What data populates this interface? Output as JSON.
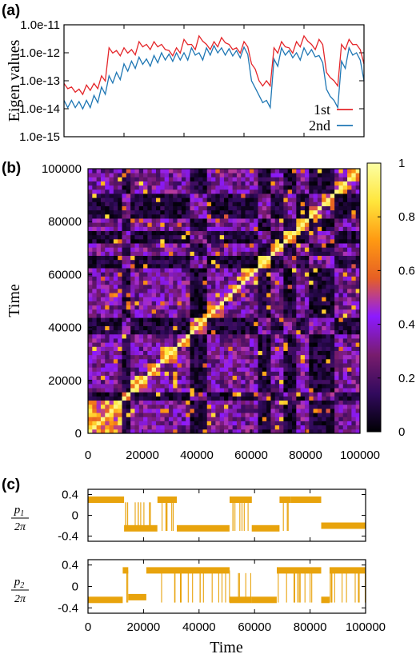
{
  "panels": {
    "a": "(a)",
    "b": "(b)",
    "c": "(c)"
  },
  "chart_data": [
    {
      "panel": "(a)",
      "type": "line",
      "ylabel": "Eigen values",
      "yscale": "log",
      "ylim": [
        1e-15,
        1e-11
      ],
      "xlim": [
        0,
        100000
      ],
      "yticks": [
        "1.0e-11",
        "1.0e-12",
        "1.0e-13",
        "1.0e-14",
        "1.0e-15"
      ],
      "legend_position": "bottom-right",
      "x": [
        0,
        2500,
        5000,
        7500,
        10000,
        12500,
        15000,
        17500,
        20000,
        22500,
        25000,
        27500,
        30000,
        32500,
        35000,
        37500,
        40000,
        42500,
        45000,
        47500,
        50000,
        52500,
        55000,
        57500,
        60000,
        62500,
        65000,
        67500,
        70000,
        72500,
        75000,
        77500,
        80000,
        82500,
        85000,
        87500,
        90000,
        92500,
        95000,
        97500,
        100000
      ],
      "series": [
        {
          "name": "1st",
          "color": "#e4262a",
          "values": [
            8e-14,
            6e-14,
            5e-14,
            7e-14,
            8e-14,
            1.5e-13,
            1.5e-12,
            1.2e-12,
            1.5e-12,
            1.3e-12,
            2.5e-12,
            2e-12,
            2.5e-12,
            2e-12,
            1.2e-12,
            1.5e-12,
            3e-12,
            2e-12,
            4e-12,
            2e-12,
            2.5e-12,
            3.5e-12,
            2e-12,
            1.5e-12,
            2.5e-12,
            4e-13,
            1e-13,
            1e-13,
            1.5e-12,
            2.5e-12,
            1.5e-12,
            2.5e-12,
            4e-12,
            2e-12,
            3e-12,
            2e-13,
            1e-13,
            2e-12,
            3e-12,
            2e-12,
            4e-13
          ]
        },
        {
          "name": "2nd",
          "color": "#1f77b4",
          "values": [
            2e-14,
            2e-14,
            1.8e-14,
            2e-14,
            3e-14,
            6e-14,
            1.5e-13,
            2e-13,
            4e-13,
            5e-13,
            7e-13,
            6e-13,
            8e-13,
            1e-12,
            9e-13,
            1e-12,
            1e-12,
            1.5e-12,
            1e-12,
            1.5e-12,
            1.8e-12,
            1.5e-12,
            1.4e-12,
            1.2e-12,
            1.6e-12,
            1e-13,
            3e-14,
            2e-14,
            6e-13,
            1.5e-12,
            1.2e-12,
            1e-12,
            1.5e-12,
            1.3e-12,
            8e-13,
            5e-14,
            2e-14,
            5e-13,
            1.5e-12,
            1e-12,
            1e-13
          ]
        }
      ]
    },
    {
      "panel": "(b)",
      "type": "heatmap",
      "ylabel": "Time",
      "xlim": [
        0,
        100000
      ],
      "ylim": [
        0,
        100000
      ],
      "xticks": [
        "0",
        "20000",
        "40000",
        "60000",
        "80000",
        "100000"
      ],
      "yticks": [
        "0",
        "20000",
        "40000",
        "60000",
        "80000",
        "100000"
      ],
      "grid_size": 64,
      "colorbar": {
        "range": [
          0,
          1
        ],
        "ticks": [
          "0",
          "0.2",
          "0.4",
          "0.6",
          "0.8",
          "1"
        ],
        "colors": [
          "#000004",
          "#320a5e",
          "#781c6d",
          "#8c1aff",
          "#e65f24",
          "#ff9a12",
          "#ffe63c",
          "#fcffa4"
        ]
      },
      "block_boundaries": [
        0,
        12000,
        16000,
        22000,
        27000,
        33000,
        38000,
        44000,
        50000,
        53000,
        57000,
        63000,
        67000,
        72000,
        77000,
        82000,
        86000,
        90000,
        95000,
        100000
      ]
    },
    {
      "panel": "(c)",
      "type": "line",
      "ylabel": "p1/2π",
      "xlim": [
        0,
        100000
      ],
      "ylim": [
        -0.5,
        0.5
      ],
      "yticks": [
        "0.4",
        "0",
        "-0.4"
      ],
      "color": "#e8a30c",
      "segments": [
        {
          "x0": 0,
          "x1": 13000,
          "level": 0.3
        },
        {
          "x0": 13000,
          "x1": 25000,
          "level": -0.25,
          "switching": true
        },
        {
          "x0": 25000,
          "x1": 32000,
          "level": 0.3,
          "switching": true
        },
        {
          "x0": 32000,
          "x1": 51000,
          "level": -0.25
        },
        {
          "x0": 51000,
          "x1": 59000,
          "level": 0.3,
          "switching": true
        },
        {
          "x0": 59000,
          "x1": 69000,
          "level": -0.25
        },
        {
          "x0": 69000,
          "x1": 73000,
          "level": 0.3,
          "switching": true
        },
        {
          "x0": 73000,
          "x1": 84000,
          "level": 0.3
        },
        {
          "x0": 84000,
          "x1": 100000,
          "level": -0.2
        }
      ]
    },
    {
      "panel": "(c)",
      "type": "line",
      "ylabel": "p2/2π",
      "xlabel": "Time",
      "xlim": [
        0,
        100000
      ],
      "ylim": [
        -0.5,
        0.5
      ],
      "xticks": [
        "0",
        "20000",
        "40000",
        "60000",
        "80000",
        "100000"
      ],
      "yticks": [
        "0.4",
        "0",
        "-0.4"
      ],
      "color": "#e8a30c",
      "segments": [
        {
          "x0": 0,
          "x1": 12500,
          "level": -0.25
        },
        {
          "x0": 12500,
          "x1": 14500,
          "level": 0.3,
          "switching": true
        },
        {
          "x0": 14500,
          "x1": 21000,
          "level": -0.2
        },
        {
          "x0": 21000,
          "x1": 51000,
          "level": 0.3,
          "switching": true
        },
        {
          "x0": 51000,
          "x1": 59000,
          "level": -0.25,
          "switching": true
        },
        {
          "x0": 59000,
          "x1": 68000,
          "level": -0.25
        },
        {
          "x0": 68000,
          "x1": 84000,
          "level": 0.3,
          "switching": true
        },
        {
          "x0": 84000,
          "x1": 87000,
          "level": -0.25
        },
        {
          "x0": 87000,
          "x1": 100000,
          "level": 0.3,
          "switching": true
        }
      ]
    }
  ]
}
